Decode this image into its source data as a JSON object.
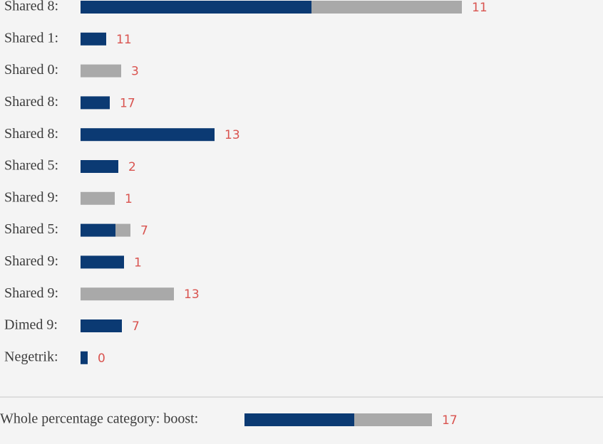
{
  "colors": {
    "primary": "#0b3a73",
    "secondary": "#a9a9a9",
    "count": "#d9534f"
  },
  "rows": [
    {
      "label": "Shared 8:",
      "primary": 32.4,
      "secondary": 21.1,
      "count": 11
    },
    {
      "label": "Shared 1:",
      "primary": 3.6,
      "secondary": 0,
      "count": 11
    },
    {
      "label": "Shared 0:",
      "primary": 0,
      "secondary": 5.7,
      "count": 3
    },
    {
      "label": "Shared 8:",
      "primary": 4.1,
      "secondary": 0,
      "count": 17
    },
    {
      "label": "Shared 8:",
      "primary": 18.8,
      "secondary": 0,
      "count": 13
    },
    {
      "label": "Shared 5:",
      "primary": 5.3,
      "secondary": 0,
      "count": 2
    },
    {
      "label": "Shared 9:",
      "primary": 0,
      "secondary": 4.8,
      "count": 1
    },
    {
      "label": "Shared 5:",
      "primary": 4.9,
      "secondary": 2.1,
      "count": 7
    },
    {
      "label": "Shared 9:",
      "primary": 6.1,
      "secondary": 0,
      "count": 1
    },
    {
      "label": "Shared 9:",
      "primary": 0,
      "secondary": 13.1,
      "count": 13
    },
    {
      "label": "Dimed 9:",
      "primary": 5.8,
      "secondary": 0,
      "count": 7
    },
    {
      "label": "Negetrik:",
      "primary": 1.0,
      "secondary": 0,
      "count": 0
    }
  ],
  "footer": {
    "label": "Whole percentage category: boost:",
    "primary": 15.4,
    "secondary": 10.9,
    "count": 17
  }
}
